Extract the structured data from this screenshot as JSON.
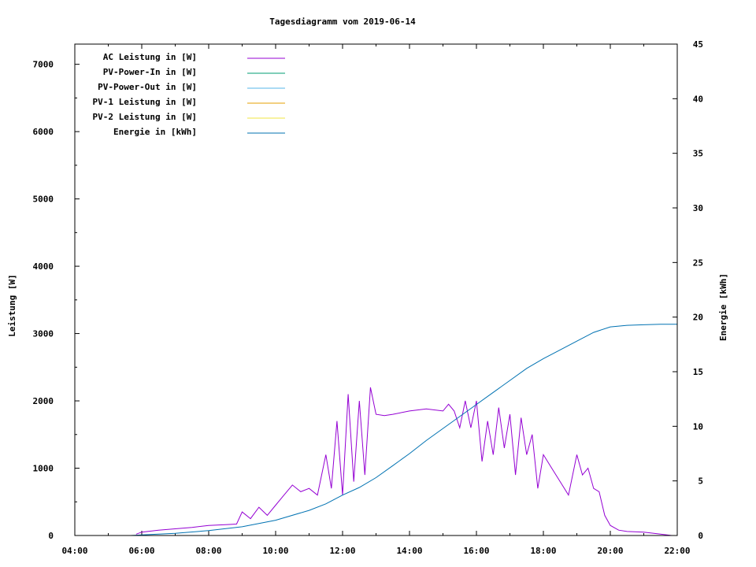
{
  "chart_data": {
    "type": "line",
    "title": "Tagesdiagramm vom 2019-06-14",
    "xlabel": "",
    "ylabel": "Leistung [W]",
    "y2label": "Energie [kWh]",
    "xlim": [
      "04:00",
      "22:00"
    ],
    "ylim": [
      0,
      7300
    ],
    "y2lim": [
      0,
      45
    ],
    "x_ticks": [
      "04:00",
      "06:00",
      "08:00",
      "10:00",
      "12:00",
      "14:00",
      "16:00",
      "18:00",
      "20:00",
      "22:00"
    ],
    "y_ticks": [
      "0",
      "1000",
      "2000",
      "3000",
      "4000",
      "5000",
      "6000",
      "7000"
    ],
    "y2_ticks": [
      "0",
      "5",
      "10",
      "15",
      "20",
      "25",
      "30",
      "35",
      "40",
      "45"
    ],
    "legend_position": "top-left",
    "series": [
      {
        "name": "AC Leistung in [W]",
        "color": "#9400d3",
        "axis": "y",
        "x": [
          "05:50",
          "06:00",
          "06:30",
          "07:00",
          "07:30",
          "08:00",
          "08:30",
          "08:50",
          "09:00",
          "09:15",
          "09:30",
          "09:45",
          "10:00",
          "10:15",
          "10:30",
          "10:45",
          "11:00",
          "11:15",
          "11:30",
          "11:40",
          "11:50",
          "12:00",
          "12:10",
          "12:20",
          "12:30",
          "12:40",
          "12:50",
          "13:00",
          "13:15",
          "13:30",
          "14:00",
          "14:30",
          "15:00",
          "15:10",
          "15:20",
          "15:30",
          "15:40",
          "15:50",
          "16:00",
          "16:10",
          "16:20",
          "16:30",
          "16:40",
          "16:50",
          "17:00",
          "17:10",
          "17:20",
          "17:30",
          "17:40",
          "17:50",
          "18:00",
          "18:15",
          "18:30",
          "18:45",
          "19:00",
          "19:10",
          "19:20",
          "19:30",
          "19:40",
          "19:50",
          "20:00",
          "20:15",
          "20:30",
          "21:00",
          "21:30",
          "21:50"
        ],
        "values": [
          20,
          50,
          80,
          100,
          120,
          150,
          160,
          170,
          350,
          250,
          420,
          300,
          450,
          600,
          750,
          650,
          700,
          600,
          1200,
          700,
          1700,
          600,
          2100,
          800,
          2000,
          900,
          2200,
          1800,
          1780,
          1800,
          1850,
          1880,
          1850,
          1950,
          1850,
          1600,
          2000,
          1600,
          2000,
          1100,
          1700,
          1200,
          1900,
          1300,
          1800,
          900,
          1750,
          1200,
          1500,
          700,
          1200,
          1000,
          800,
          600,
          1200,
          900,
          1000,
          700,
          650,
          300,
          150,
          80,
          60,
          50,
          20,
          0
        ]
      },
      {
        "name": "PV-Power-In in [W]",
        "color": "#009e73",
        "axis": "y",
        "x": [],
        "values": []
      },
      {
        "name": "PV-Power-Out in [W]",
        "color": "#56b4e9",
        "axis": "y",
        "x": [],
        "values": []
      },
      {
        "name": "PV-1 Leistung in [W]",
        "color": "#e69f00",
        "axis": "y",
        "x": [],
        "values": []
      },
      {
        "name": "PV-2 Leistung in [W]",
        "color": "#f0e442",
        "axis": "y",
        "x": [],
        "values": []
      },
      {
        "name": "Energie in [kWh]",
        "color": "#0072b2",
        "axis": "y2",
        "x": [
          "05:40",
          "06:00",
          "07:00",
          "08:00",
          "09:00",
          "10:00",
          "11:00",
          "11:30",
          "12:00",
          "12:30",
          "13:00",
          "13:30",
          "14:00",
          "14:30",
          "15:00",
          "15:30",
          "16:00",
          "16:30",
          "17:00",
          "17:30",
          "18:00",
          "18:30",
          "19:00",
          "19:30",
          "20:00",
          "20:30",
          "21:00",
          "21:30",
          "22:00"
        ],
        "values": [
          0,
          0.05,
          0.2,
          0.45,
          0.8,
          1.4,
          2.3,
          2.9,
          3.7,
          4.4,
          5.3,
          6.4,
          7.5,
          8.7,
          9.8,
          10.9,
          12.0,
          13.1,
          14.2,
          15.3,
          16.2,
          17.0,
          17.8,
          18.6,
          19.1,
          19.25,
          19.3,
          19.35,
          19.35
        ]
      }
    ]
  }
}
